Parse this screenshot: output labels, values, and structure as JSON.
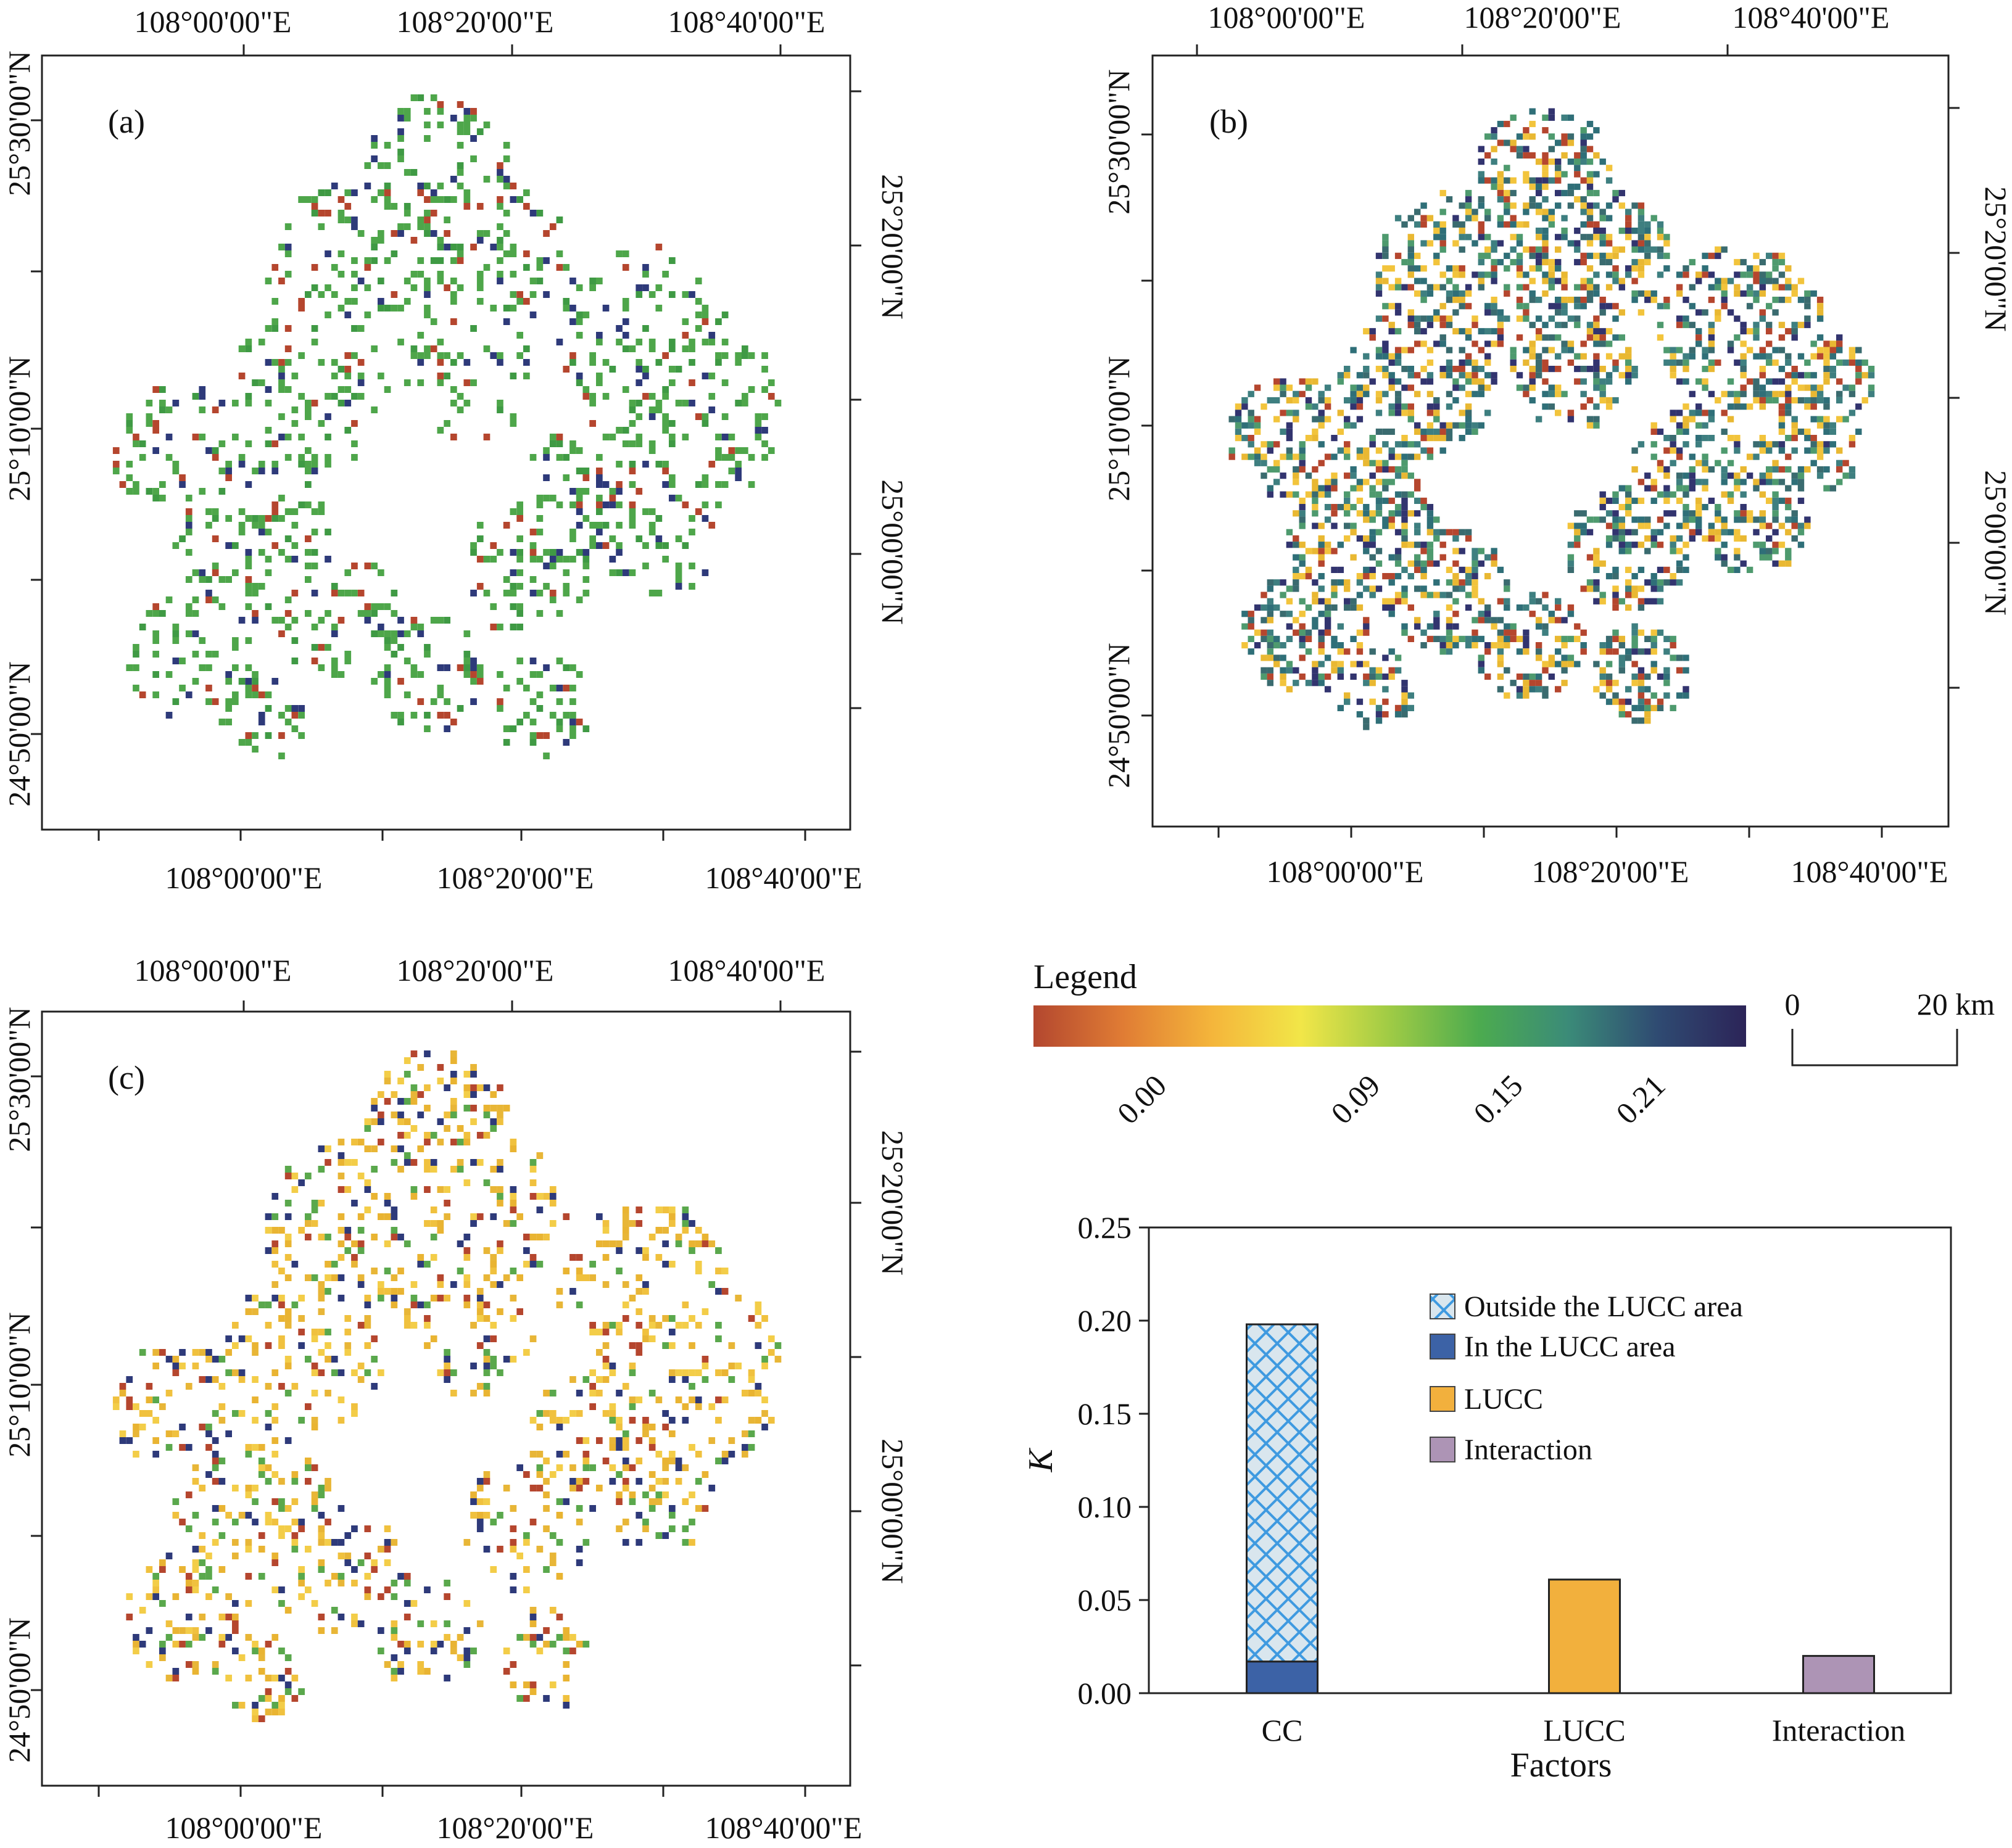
{
  "maps": [
    {
      "id": "a",
      "label": "(a)",
      "top_labels": [
        "108°00'00\"E",
        "108°20'00\"E",
        "108°40'00\"E"
      ],
      "bottom_labels": [
        "108°00'00\"E",
        "108°20'00\"E",
        "108°40'00\"E"
      ],
      "left_labels": [
        "25°30'00\"N",
        "25°10'00\"N",
        "24°50'00\"N"
      ],
      "right_labels": [
        "25°20'00\"N",
        "25°00'00\"N"
      ],
      "colors": [
        "#4ea64a",
        "#4ea64a",
        "#4ea64a",
        "#4ea64a",
        "#3f9a44",
        "#b5462e",
        "#2e3a7a"
      ],
      "seed": 11,
      "density": 0.22
    },
    {
      "id": "b",
      "label": "(b)",
      "top_labels": [
        "108°00'00\"E",
        "108°20'00\"E",
        "108°40'00\"E"
      ],
      "bottom_labels": [
        "108°00'00\"E",
        "108°20'00\"E",
        "108°40'00\"E"
      ],
      "left_labels": [
        "25°30'00\"N",
        "25°10'00\"N",
        "24°50'00\"N"
      ],
      "right_labels": [
        "25°20'00\"N",
        "25°00'00\"N"
      ],
      "colors": [
        "#3e7f80",
        "#2f6f78",
        "#3a6b6f",
        "#f2c43c",
        "#e9b832",
        "#4e9a6e",
        "#32346f",
        "#b5462e"
      ],
      "seed": 23,
      "density": 0.42
    },
    {
      "id": "c",
      "label": "(c)",
      "top_labels": [
        "108°00'00\"E",
        "108°20'00\"E",
        "108°40'00\"E"
      ],
      "bottom_labels": [
        "108°00'00\"E",
        "108°20'00\"E",
        "108°40'00\"E"
      ],
      "left_labels": [
        "25°30'00\"N",
        "25°10'00\"N",
        "24°50'00\"N"
      ],
      "right_labels": [
        "25°20'00\"N",
        "25°00'00\"N"
      ],
      "colors": [
        "#f0c13e",
        "#e8b637",
        "#f3cd48",
        "#e9b432",
        "#5aa84c",
        "#b5462e",
        "#2e3a7a"
      ],
      "seed": 37,
      "density": 0.22
    }
  ],
  "legend": {
    "title": "Legend",
    "ticks": [
      "0.00",
      "0.09",
      "0.15",
      "0.21"
    ],
    "tick_values": [
      0.0,
      0.09,
      0.15,
      0.21
    ],
    "range": [
      -0.045,
      0.255
    ],
    "gradient": [
      "#b3472f",
      "#e07c34",
      "#f4b53b",
      "#f2e648",
      "#9fcb45",
      "#4cab4f",
      "#3b8b78",
      "#2f4b72",
      "#2c2458"
    ]
  },
  "scale_bar": {
    "start": "0",
    "end": "20 km"
  },
  "chart_data": {
    "type": "bar",
    "categories": [
      "CC",
      "LUCC",
      "Interaction"
    ],
    "series": [
      {
        "name": "In the LUCC area",
        "values": [
          0.017,
          null,
          null
        ],
        "color": "#3c62a6"
      },
      {
        "name": "Outside the LUCC area",
        "values": [
          0.181,
          null,
          null
        ],
        "color": "#d6e6f1",
        "pattern": "crosshatch-blue"
      },
      {
        "name": "LUCC",
        "values": [
          null,
          0.061,
          null
        ],
        "color": "#f2b03d"
      },
      {
        "name": "Interaction",
        "values": [
          null,
          null,
          0.02
        ],
        "color": "#ad94b5"
      }
    ],
    "legend_order": [
      "Outside the LUCC area",
      "In the LUCC area",
      "LUCC",
      "Interaction"
    ],
    "xlabel": "Factors",
    "ylabel": "K",
    "ylim": [
      0,
      0.25
    ],
    "yticks": [
      "0.00",
      "0.05",
      "0.10",
      "0.15",
      "0.20",
      "0.25"
    ],
    "ytick_values": [
      0,
      0.05,
      0.1,
      0.15,
      0.2,
      0.25
    ],
    "legend_position": "top-right",
    "grid": false
  }
}
